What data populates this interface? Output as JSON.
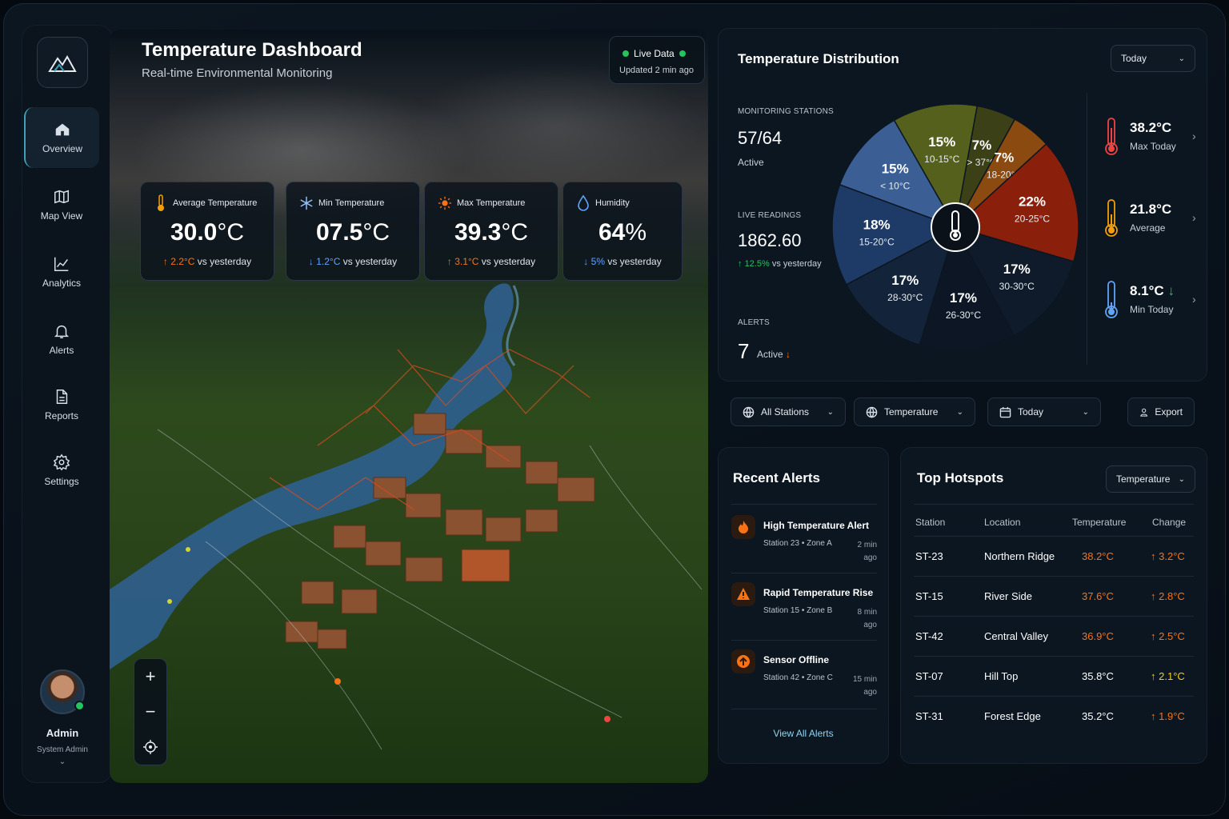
{
  "sidebar": {
    "items": [
      {
        "label": "Overview",
        "icon": "home-icon",
        "active": true
      },
      {
        "label": "Map View",
        "icon": "map-icon"
      },
      {
        "label": "Analytics",
        "icon": "analytics-icon"
      },
      {
        "label": "Alerts",
        "icon": "bell-icon"
      },
      {
        "label": "Reports",
        "icon": "document-icon"
      },
      {
        "label": "Settings",
        "icon": "gear-icon"
      }
    ],
    "user": {
      "name": "Admin",
      "role": "System Admin"
    }
  },
  "header": {
    "title": "Temperature Dashboard",
    "subtitle": "Real-time Environmental Monitoring",
    "live_label": "Live Data",
    "updated": "Updated 2 min ago"
  },
  "stats": [
    {
      "label": "Average Temperature",
      "value": "30.0",
      "unit": "°C",
      "change": "2.2°C",
      "direction": "up",
      "suffix": "vs yesterday",
      "icon": "thermometer-icon",
      "accent": "#f59e0b"
    },
    {
      "label": "Min Temperature",
      "value": "07.5",
      "unit": "°C",
      "change": "1.2°C",
      "direction": "down",
      "suffix": "vs yesterday",
      "icon": "snowflake-icon",
      "accent": "#93c5fd"
    },
    {
      "label": "Max Temperature",
      "value": "39.3",
      "unit": "°C",
      "change": "3.1°C",
      "direction": "up",
      "suffix": "vs yesterday",
      "icon": "sun-icon",
      "accent": "#f97316"
    },
    {
      "label": "Humidity",
      "value": "64",
      "unit": "%",
      "change": "5%",
      "direction": "down",
      "suffix": "vs yesterday",
      "icon": "droplet-icon",
      "accent": "#60a5fa"
    }
  ],
  "distribution": {
    "title": "Temperature Distribution",
    "period": "Today",
    "kpis": {
      "stations_label": "MONITORING STATIONS",
      "stations_value": "57/64",
      "stations_sub": "Active",
      "readings_label": "LIVE READINGS",
      "readings_value": "1862.60",
      "readings_change": "12.5%",
      "readings_suffix": "vs yesterday",
      "alerts_label": "ALERTS",
      "alerts_value": "7",
      "alerts_sub": "Active"
    },
    "summary": [
      {
        "value": "38.2°C",
        "label": "Max Today",
        "color": "#ef4444"
      },
      {
        "value": "21.8°C",
        "label": "Average",
        "color": "#f59e0b"
      },
      {
        "value": "8.1°C",
        "label": "Min Today",
        "color": "#60a5fa"
      }
    ]
  },
  "chart_data": {
    "type": "pie",
    "slices": [
      {
        "label": "10-15°C",
        "value": 15,
        "text": "15%",
        "color": "#55601c"
      },
      {
        "label": "> 37°C",
        "value": 7,
        "text": "7%",
        "color": "#3b4016"
      },
      {
        "label": "18-20°C",
        "value": 7,
        "text": "7%",
        "color": "#8a4a10"
      },
      {
        "label": "20-25°C",
        "value": 22,
        "text": "22%",
        "color": "#8a1f0c"
      },
      {
        "label": "30-30°C",
        "value": 17,
        "text": "17%",
        "color": "#0f1b2b"
      },
      {
        "label": "26-30°C",
        "value": 17,
        "text": "17%",
        "color": "#0c1624"
      },
      {
        "label": "28-30°C",
        "value": 17,
        "text": "17%",
        "color": "#13233a"
      },
      {
        "label": "15-20°C",
        "value": 18,
        "text": "18%",
        "color": "#1e3a66"
      },
      {
        "label": "< 10°C",
        "value": 15,
        "text": "15%",
        "color": "#3b5f94"
      }
    ]
  },
  "filters": [
    {
      "label": "All Stations",
      "icon": "globe-icon"
    },
    {
      "label": "Temperature",
      "icon": "globe-icon"
    },
    {
      "label": "Today",
      "icon": "calendar-icon"
    }
  ],
  "export_label": "Export",
  "alerts": {
    "title": "Recent Alerts",
    "items": [
      {
        "title": "High Temperature Alert",
        "sub": "Station 23 • Zone A",
        "time": "2 min ago"
      },
      {
        "title": "Rapid Temperature Rise",
        "sub": "Station 15 • Zone B",
        "time": "8 min ago"
      },
      {
        "title": "Sensor Offline",
        "sub": "Station 42 • Zone C",
        "time": "15 min ago"
      }
    ],
    "view_all": "View All Alerts"
  },
  "hotspots": {
    "title": "Top Hotspots",
    "filter": "Temperature",
    "columns": [
      "Station",
      "Location",
      "Temperature",
      "Change"
    ],
    "rows": [
      {
        "station": "ST-23",
        "location": "Northern Ridge",
        "temp": "38.2°C",
        "change": "3.2°C",
        "temp_color": "#f97316",
        "change_color": "#f97316"
      },
      {
        "station": "ST-15",
        "location": "River Side",
        "temp": "37.6°C",
        "change": "2.8°C",
        "temp_color": "#f97316",
        "change_color": "#f97316"
      },
      {
        "station": "ST-42",
        "location": "Central Valley",
        "temp": "36.9°C",
        "change": "2.5°C",
        "temp_color": "#f97316",
        "change_color": "#f97316"
      },
      {
        "station": "ST-07",
        "location": "Hill Top",
        "temp": "35.8°C",
        "change": "2.1°C",
        "temp_color": "#ffffff",
        "change_color": "#facc15"
      },
      {
        "station": "ST-31",
        "location": "Forest Edge",
        "temp": "35.2°C",
        "change": "1.9°C",
        "temp_color": "#ffffff",
        "change_color": "#f97316"
      }
    ]
  }
}
